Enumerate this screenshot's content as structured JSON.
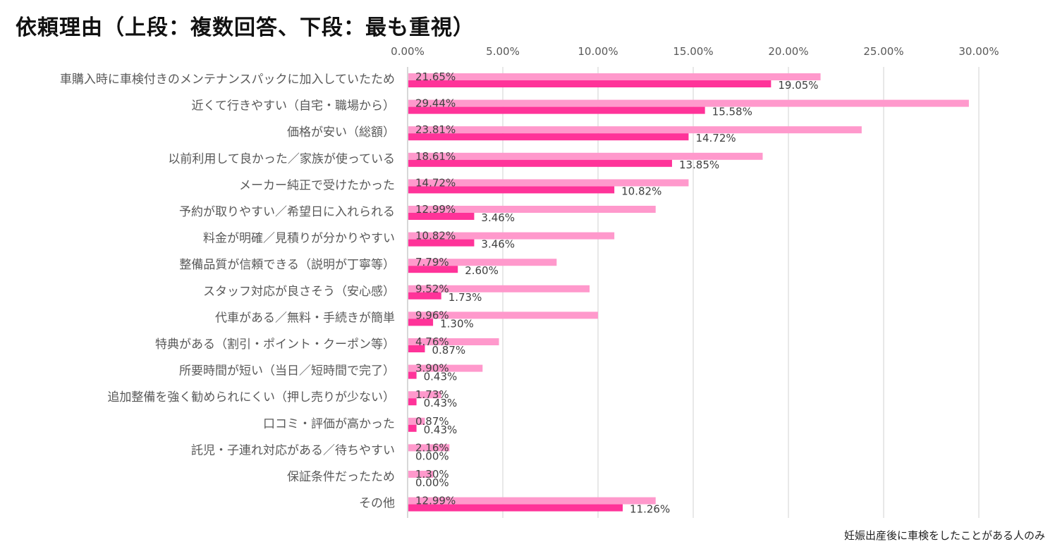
{
  "chart_data": {
    "type": "bar",
    "orientation": "horizontal",
    "title": "依頼理由（上段：複数回答、下段：最も重視）",
    "note": "妊娠出産後に車検をしたことがある人のみ",
    "xlim": [
      0,
      30
    ],
    "x_ticks": [
      "0.00%",
      "5.00%",
      "10.00%",
      "15.00%",
      "20.00%",
      "25.00%",
      "30.00%"
    ],
    "x_tick_values": [
      0,
      5,
      10,
      15,
      20,
      25,
      30
    ],
    "grid": true,
    "legend": "none",
    "categories": [
      "車購入時に車検付きのメンテナンスパックに加入していたため",
      "近くて行きやすい（自宅・職場から）",
      "価格が安い（総額）",
      "以前利用して良かった／家族が使っている",
      "メーカー純正で受けたかった",
      "予約が取りやすい／希望日に入れられる",
      "料金が明確／見積りが分かりやすい",
      "整備品質が信頼できる（説明が丁寧等）",
      "スタッフ対応が良さそう（安心感）",
      "代車がある／無料・手続きが簡単",
      "特典がある（割引・ポイント・クーポン等）",
      "所要時間が短い（当日／短時間で完了）",
      "追加整備を強く勧められにくい（押し売りが少ない）",
      "口コミ・評価が高かった",
      "託児・子連れ対応がある／待ちやすい",
      "保証条件だったため",
      "その他"
    ],
    "series": [
      {
        "color": "#ff99cc",
        "values": [
          21.65,
          29.44,
          23.81,
          18.61,
          14.72,
          12.99,
          10.82,
          7.79,
          9.52,
          9.96,
          4.76,
          3.9,
          1.73,
          0.87,
          2.16,
          1.3,
          12.99
        ],
        "labels": [
          "21.65%",
          "29.44%",
          "23.81%",
          "18.61%",
          "14.72%",
          "12.99%",
          "10.82%",
          "7.79%",
          "9.52%",
          "9.96%",
          "4.76%",
          "3.90%",
          "1.73%",
          "0.87%",
          "2.16%",
          "1.30%",
          "12.99%"
        ]
      },
      {
        "color": "#ff3399",
        "values": [
          19.05,
          15.58,
          14.72,
          13.85,
          10.82,
          3.46,
          3.46,
          2.6,
          1.73,
          1.3,
          0.87,
          0.43,
          0.43,
          0.43,
          0.0,
          0.0,
          11.26
        ],
        "labels": [
          "19.05%",
          "15.58%",
          "14.72%",
          "13.85%",
          "10.82%",
          "3.46%",
          "3.46%",
          "2.60%",
          "1.73%",
          "1.30%",
          "0.87%",
          "0.43%",
          "0.43%",
          "0.43%",
          "0.00%",
          "0.00%",
          "11.26%"
        ]
      }
    ]
  },
  "colors": {
    "gridline": "#d9d9d9",
    "axis": "#bfbfbf"
  }
}
